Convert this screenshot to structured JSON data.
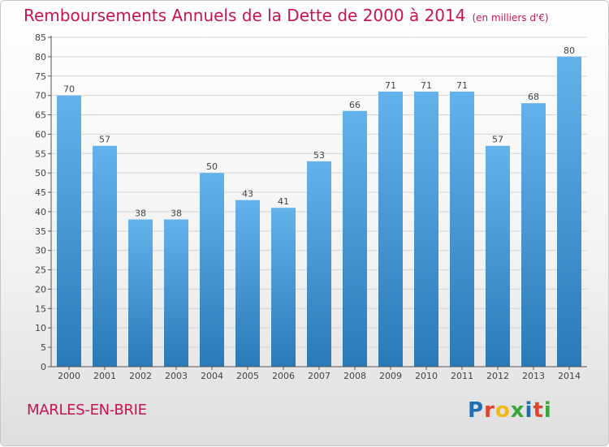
{
  "header": {
    "title": "Remboursements Annuels de la Dette de 2000 à 2014",
    "subtitle": "(en milliers d'€)"
  },
  "footer": {
    "town": "MARLES-EN-BRIE",
    "logo": "Proxiti",
    "logo_colors": [
      "#1f6fb2",
      "#e0452b",
      "#f2b90f",
      "#3aa63a",
      "#1f6fb2",
      "#e0452b",
      "#3aa63a"
    ]
  },
  "chart_data": {
    "type": "bar",
    "title": "Remboursements Annuels de la Dette de 2000 à 2014",
    "xlabel": "",
    "ylabel": "",
    "categories": [
      "2000",
      "2001",
      "2002",
      "2003",
      "2004",
      "2005",
      "2006",
      "2007",
      "2008",
      "2009",
      "2010",
      "2011",
      "2012",
      "2013",
      "2014"
    ],
    "values": [
      70,
      57,
      38,
      38,
      50,
      43,
      41,
      53,
      66,
      71,
      71,
      71,
      57,
      68,
      80
    ],
    "ylim": [
      0,
      85
    ],
    "yticks": [
      0,
      5,
      10,
      15,
      20,
      25,
      30,
      35,
      40,
      45,
      50,
      55,
      60,
      65,
      70,
      75,
      80,
      85
    ],
    "grid": true,
    "colors": {
      "bar_top": "#64b2ec",
      "bar_bottom": "#2a7ab8",
      "grid": "#d4d4d4",
      "axis": "#555555",
      "label": "#444444"
    }
  }
}
